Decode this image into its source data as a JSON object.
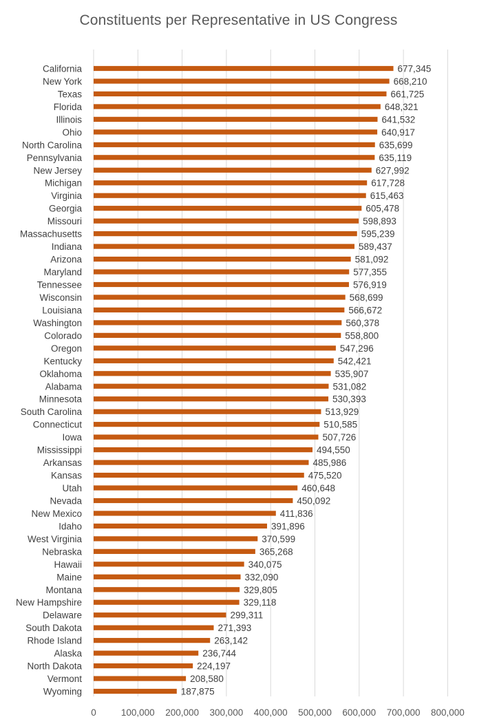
{
  "colors": {
    "bar": "#c55a11",
    "gridline": "#d9d9d9",
    "title": "#595959",
    "text": "#404040"
  },
  "chart_data": {
    "type": "bar",
    "orientation": "horizontal",
    "title": "Constituents per Representative in US Congress",
    "xlabel": "",
    "ylabel": "",
    "xlim": [
      0,
      800000
    ],
    "x_ticks": [
      0,
      100000,
      200000,
      300000,
      400000,
      500000,
      600000,
      700000,
      800000
    ],
    "x_tick_labels": [
      "0",
      "100,000",
      "200,000",
      "300,000",
      "400,000",
      "500,000",
      "600,000",
      "700,000",
      "800,000"
    ],
    "grid": "vertical",
    "legend": "none",
    "categories": [
      "California",
      "New York",
      "Texas",
      "Florida",
      "Illinois",
      "Ohio",
      "North Carolina",
      "Pennsylvania",
      "New Jersey",
      "Michigan",
      "Virginia",
      "Georgia",
      "Missouri",
      "Massachusetts",
      "Indiana",
      "Arizona",
      "Maryland",
      "Tennessee",
      "Wisconsin",
      "Louisiana",
      "Washington",
      "Colorado",
      "Oregon",
      "Kentucky",
      "Oklahoma",
      "Alabama",
      "Minnesota",
      "South Carolina",
      "Connecticut",
      "Iowa",
      "Mississippi",
      "Arkansas",
      "Kansas",
      "Utah",
      "Nevada",
      "New Mexico",
      "Idaho",
      "West Virginia",
      "Nebraska",
      "Hawaii",
      "Maine",
      "Montana",
      "New Hampshire",
      "Delaware",
      "South Dakota",
      "Rhode Island",
      "Alaska",
      "North Dakota",
      "Vermont",
      "Wyoming"
    ],
    "values": [
      677345,
      668210,
      661725,
      648321,
      641532,
      640917,
      635699,
      635119,
      627992,
      617728,
      615463,
      605478,
      598893,
      595239,
      589437,
      581092,
      577355,
      576919,
      568699,
      566672,
      560378,
      558800,
      547296,
      542421,
      535907,
      531082,
      530393,
      513929,
      510585,
      507726,
      494550,
      485986,
      475520,
      460648,
      450092,
      411836,
      391896,
      370599,
      365268,
      340075,
      332090,
      329805,
      329118,
      299311,
      271393,
      263142,
      236744,
      224197,
      208580,
      187875
    ],
    "value_labels": [
      "677,345",
      "668,210",
      "661,725",
      "648,321",
      "641,532",
      "640,917",
      "635,699",
      "635,119",
      "627,992",
      "617,728",
      "615,463",
      "605,478",
      "598,893",
      "595,239",
      "589,437",
      "581,092",
      "577,355",
      "576,919",
      "568,699",
      "566,672",
      "560,378",
      "558,800",
      "547,296",
      "542,421",
      "535,907",
      "531,082",
      "530,393",
      "513,929",
      "510,585",
      "507,726",
      "494,550",
      "485,986",
      "475,520",
      "460,648",
      "450,092",
      "411,836",
      "391,896",
      "370,599",
      "365,268",
      "340,075",
      "332,090",
      "329,805",
      "329,118",
      "299,311",
      "271,393",
      "263,142",
      "236,744",
      "224,197",
      "208,580",
      "187,875"
    ]
  }
}
